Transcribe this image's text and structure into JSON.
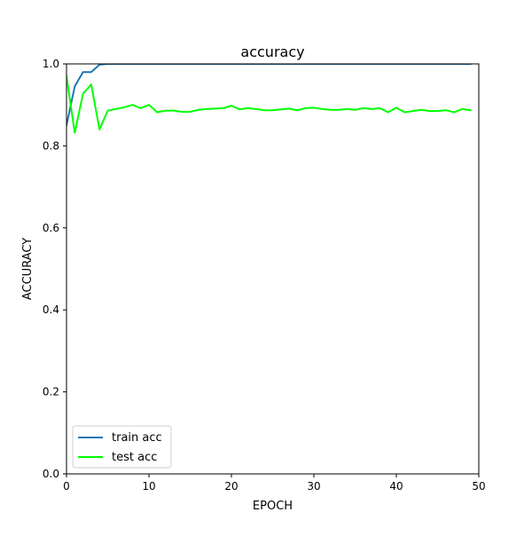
{
  "chart_data": {
    "type": "line",
    "title": "accuracy",
    "xlabel": "EPOCH",
    "ylabel": "ACCURACY",
    "xlim": [
      0,
      50
    ],
    "ylim": [
      0.0,
      1.0
    ],
    "xticks": [
      0,
      10,
      20,
      30,
      40,
      50
    ],
    "xtick_labels": [
      "0",
      "10",
      "20",
      "30",
      "40",
      "50"
    ],
    "yticks": [
      0.0,
      0.2,
      0.4,
      0.6,
      0.8,
      1.0
    ],
    "ytick_labels": [
      "0.0",
      "0.2",
      "0.4",
      "0.6",
      "0.8",
      "1.0"
    ],
    "grid": false,
    "legend_position": "lower-left",
    "series": [
      {
        "name": "train acc",
        "color": "#1f77b4",
        "x": [
          0,
          1,
          2,
          3,
          4,
          5,
          6,
          7,
          8,
          9,
          10,
          11,
          12,
          13,
          14,
          15,
          16,
          17,
          18,
          19,
          20,
          21,
          22,
          23,
          24,
          25,
          26,
          27,
          28,
          29,
          30,
          31,
          32,
          33,
          34,
          35,
          36,
          37,
          38,
          39,
          40,
          41,
          42,
          43,
          44,
          45,
          46,
          47,
          48,
          49
        ],
        "values": [
          0.85,
          0.945,
          0.98,
          0.98,
          0.998,
          1.0,
          1.0,
          1.0,
          1.0,
          1.0,
          1.0,
          1.0,
          1.0,
          1.0,
          1.0,
          1.0,
          1.0,
          1.0,
          1.0,
          1.0,
          1.0,
          1.0,
          1.0,
          1.0,
          1.0,
          1.0,
          1.0,
          1.0,
          1.0,
          1.0,
          1.0,
          1.0,
          1.0,
          1.0,
          1.0,
          1.0,
          1.0,
          1.0,
          1.0,
          1.0,
          1.0,
          1.0,
          1.0,
          1.0,
          1.0,
          1.0,
          1.0,
          1.0,
          1.0,
          1.0
        ]
      },
      {
        "name": "test acc",
        "color": "#00ff00",
        "x": [
          0,
          1,
          2,
          3,
          4,
          5,
          6,
          7,
          8,
          9,
          10,
          11,
          12,
          13,
          14,
          15,
          16,
          17,
          18,
          19,
          20,
          21,
          22,
          23,
          24,
          25,
          26,
          27,
          28,
          29,
          30,
          31,
          32,
          33,
          34,
          35,
          36,
          37,
          38,
          39,
          40,
          41,
          42,
          43,
          44,
          45,
          46,
          47,
          48,
          49
        ],
        "values": [
          0.97,
          0.832,
          0.927,
          0.95,
          0.84,
          0.886,
          0.89,
          0.894,
          0.9,
          0.892,
          0.9,
          0.882,
          0.886,
          0.886,
          0.883,
          0.883,
          0.888,
          0.89,
          0.891,
          0.892,
          0.898,
          0.889,
          0.892,
          0.89,
          0.887,
          0.887,
          0.889,
          0.891,
          0.887,
          0.892,
          0.893,
          0.89,
          0.888,
          0.888,
          0.89,
          0.888,
          0.892,
          0.89,
          0.892,
          0.882,
          0.893,
          0.882,
          0.885,
          0.888,
          0.885,
          0.885,
          0.887,
          0.882,
          0.89,
          0.887
        ]
      }
    ]
  }
}
